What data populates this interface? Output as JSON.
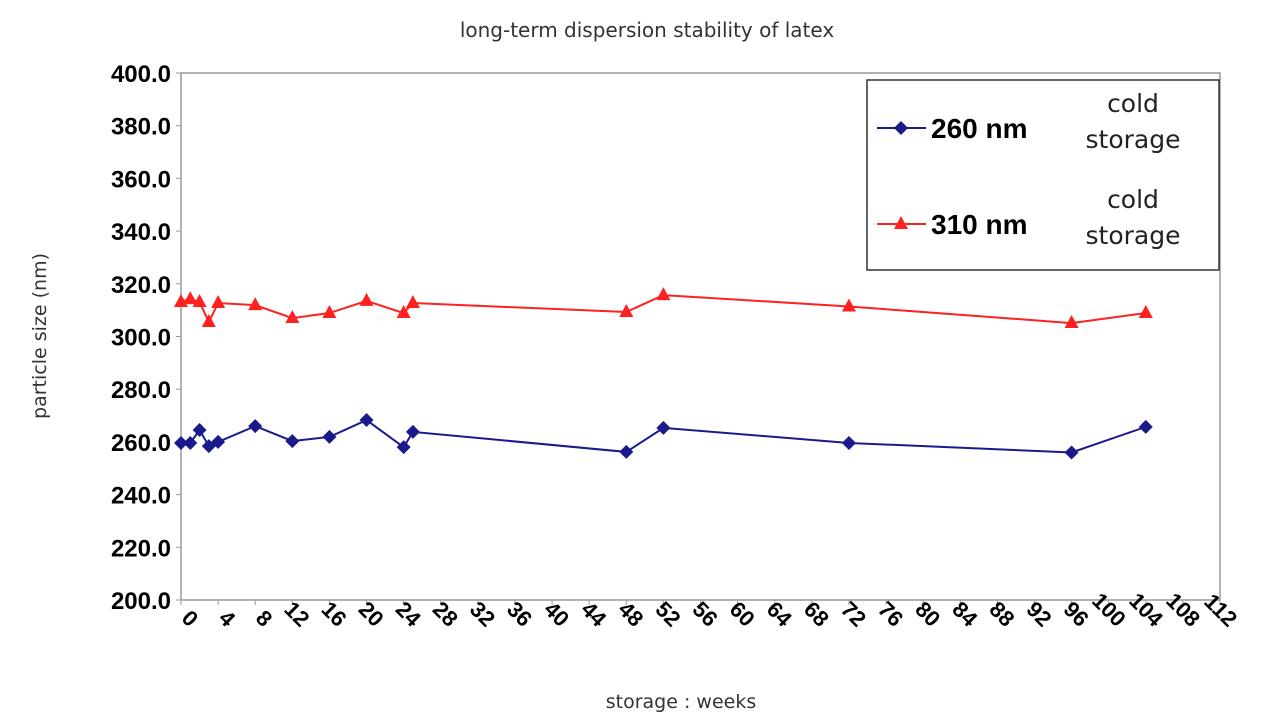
{
  "chart_data": {
    "type": "line",
    "title": "long-term dispersion stability of latex",
    "xlabel": "storage : weeks",
    "ylabel": "particle size (nm)",
    "xlim": [
      0,
      112
    ],
    "ylim": [
      200,
      400
    ],
    "xticks": [
      0,
      4,
      8,
      12,
      16,
      20,
      24,
      28,
      32,
      36,
      40,
      44,
      48,
      52,
      56,
      60,
      64,
      68,
      72,
      76,
      80,
      84,
      88,
      92,
      96,
      100,
      104,
      108,
      112
    ],
    "yticks": [
      "200.0",
      "220.0",
      "240.0",
      "260.0",
      "280.0",
      "300.0",
      "320.0",
      "340.0",
      "360.0",
      "380.0",
      "400.0"
    ],
    "grid": false,
    "legend_position": "top-right",
    "series": [
      {
        "name": "260 nm",
        "note": [
          "cold",
          "storage"
        ],
        "color": "#1a1a8c",
        "marker": "diamond",
        "x": [
          0,
          1,
          2,
          3,
          4,
          8,
          12,
          16,
          20,
          24,
          25,
          48,
          52,
          72,
          96,
          104
        ],
        "y": [
          259.6,
          259.6,
          264.5,
          258.4,
          260.0,
          266.0,
          260.3,
          261.9,
          268.3,
          258.0,
          263.8,
          256.2,
          265.3,
          259.6,
          256.0,
          265.7
        ]
      },
      {
        "name": "310 nm",
        "note": [
          "cold",
          "storage"
        ],
        "color": "#ff2020",
        "marker": "triangle",
        "x": [
          0,
          1,
          2,
          3,
          4,
          8,
          12,
          16,
          20,
          24,
          25,
          48,
          52,
          72,
          96,
          104
        ],
        "y": [
          313.1,
          314.2,
          313.1,
          305.5,
          312.7,
          311.9,
          307.0,
          308.9,
          313.5,
          308.9,
          312.7,
          309.3,
          315.7,
          311.4,
          305.1,
          308.9
        ]
      }
    ]
  }
}
